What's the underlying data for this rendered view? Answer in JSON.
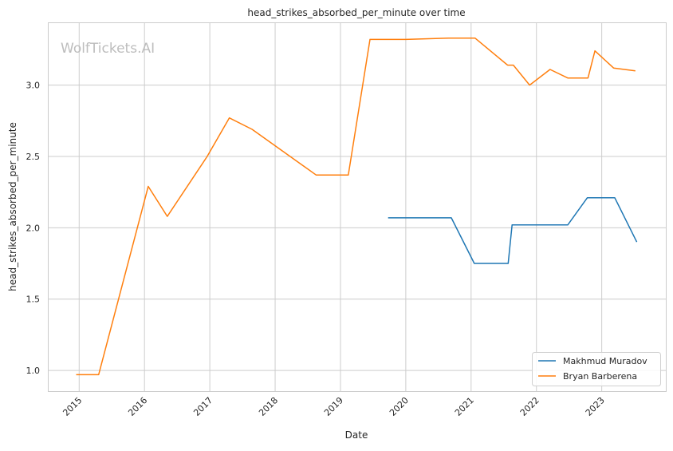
{
  "chart_data": {
    "type": "line",
    "title": "head_strikes_absorbed_per_minute over time",
    "xlabel": "Date",
    "ylabel": "head_strikes_absorbed_per_minute",
    "watermark": "WolfTickets.AI",
    "x_ticks": [
      "2015",
      "2016",
      "2017",
      "2018",
      "2019",
      "2020",
      "2021",
      "2022",
      "2023"
    ],
    "y_ticks": [
      "1.0",
      "1.5",
      "2.0",
      "2.5",
      "3.0"
    ],
    "xlim": [
      "2014-07-10",
      "2023-12-25"
    ],
    "ylim": [
      0.855,
      3.44
    ],
    "grid": true,
    "legend_placement": "lower-right",
    "series": [
      {
        "name": "Makhmud Muradov",
        "color": "#1f77b4",
        "x": [
          "2019-09-24",
          "2020-09-12",
          "2021-01-19",
          "2021-07-27",
          "2021-08-18",
          "2022-06-25",
          "2022-10-12",
          "2023-03-15",
          "2023-07-16"
        ],
        "y": [
          2.07,
          2.07,
          1.75,
          1.75,
          2.02,
          2.02,
          2.21,
          2.21,
          1.9
        ]
      },
      {
        "name": "Bryan Barberena",
        "color": "#ff7f0e",
        "x": [
          "2014-12-15",
          "2015-04-20",
          "2016-01-22",
          "2016-05-08",
          "2016-12-17",
          "2017-04-20",
          "2017-08-25",
          "2018-08-18",
          "2019-02-14",
          "2019-06-15",
          "2020-01-01",
          "2020-08-28",
          "2021-01-23",
          "2021-07-24",
          "2021-08-25",
          "2021-11-24",
          "2022-03-18",
          "2022-06-25",
          "2022-10-16",
          "2022-11-24",
          "2023-03-08",
          "2023-07-08"
        ],
        "y": [
          0.97,
          0.97,
          2.29,
          2.08,
          2.5,
          2.77,
          2.69,
          2.37,
          2.37,
          3.32,
          3.32,
          3.33,
          3.33,
          3.14,
          3.14,
          3.0,
          3.11,
          3.05,
          3.05,
          3.24,
          3.12,
          3.1
        ]
      }
    ]
  }
}
